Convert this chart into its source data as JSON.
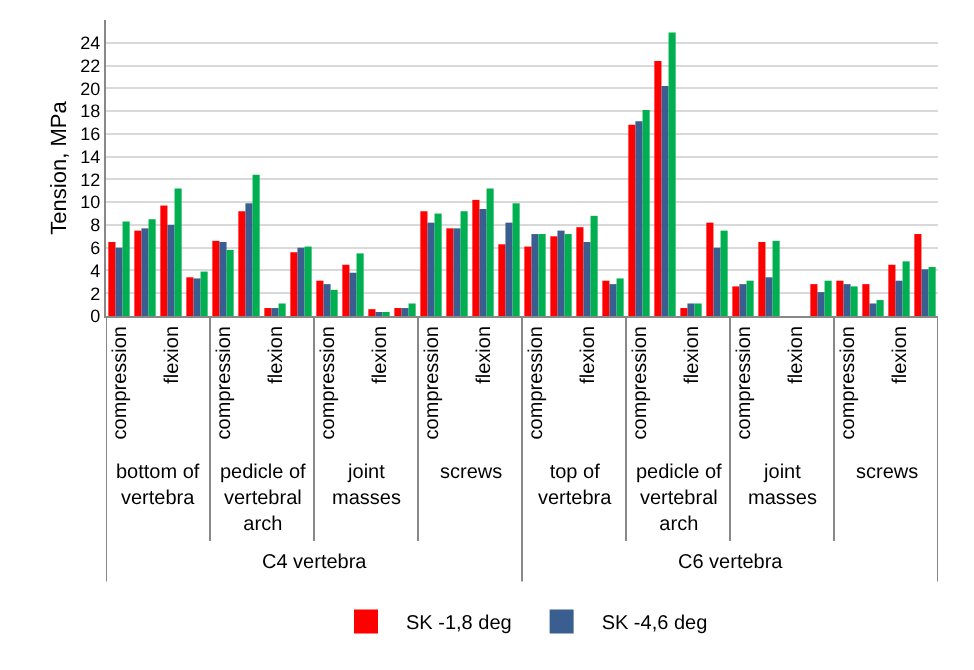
{
  "chart_data": {
    "type": "bar",
    "ylabel": "Tension, MPa",
    "categories": [
      "compression",
      null,
      "flexion",
      null,
      "compression",
      null,
      "flexion",
      null,
      "compression",
      null,
      "flexion",
      null,
      "compression",
      null,
      "flexion",
      null,
      "compression",
      null,
      "flexion",
      null,
      "compression",
      null,
      "flexion",
      null,
      "compression",
      null,
      "flexion",
      null,
      "compression",
      null,
      "flexion",
      null
    ],
    "series": [
      {
        "name": "SK -1,8 deg",
        "color": "#ff0000",
        "values": [
          6.5,
          7.5,
          9.7,
          3.4,
          6.6,
          9.2,
          0.7,
          5.6,
          3.1,
          4.5,
          0.6,
          0.7,
          9.2,
          7.7,
          10.2,
          6.3,
          6.1,
          7.0,
          7.8,
          3.1,
          16.8,
          22.4,
          0.7,
          8.2,
          2.6,
          6.5,
          null,
          2.8,
          3.1,
          2.8,
          4.5,
          7.2
        ]
      },
      {
        "name": "SK -4,6 deg",
        "color": "#3b5e91",
        "values": [
          6.0,
          7.7,
          8.0,
          3.3,
          6.5,
          9.9,
          0.7,
          6.0,
          2.8,
          3.8,
          0.2,
          0.7,
          8.2,
          7.7,
          9.4,
          8.2,
          7.2,
          7.5,
          6.5,
          2.8,
          17.1,
          20.2,
          1.1,
          6.0,
          2.8,
          3.4,
          null,
          2.1,
          2.8,
          1.1,
          3.1,
          4.1
        ]
      },
      {
        "color": "#00b050",
        "values": [
          8.3,
          8.5,
          11.2,
          3.9,
          5.8,
          12.4,
          1.1,
          6.1,
          2.3,
          5.5,
          0.2,
          1.1,
          9.0,
          9.2,
          11.2,
          9.9,
          7.2,
          7.2,
          8.8,
          3.3,
          18.1,
          24.9,
          1.1,
          7.5,
          3.1,
          6.6,
          null,
          3.1,
          2.6,
          1.4,
          4.8,
          4.3
        ]
      }
    ],
    "annotations": [
      "bottom of vertebra",
      "pedicle of vertebral arch",
      "joint masses",
      "screws",
      "top of vertebra",
      "pedicle of vertebral arch",
      "joint masses",
      "screws",
      "C4 vertebra",
      "C6 vertebra"
    ],
    "ylim": [
      0,
      26
    ],
    "yticks": [
      0,
      2,
      4,
      6,
      8,
      10,
      12,
      14,
      16,
      18,
      20,
      22,
      24
    ],
    "grid": "y",
    "legend": "bottom"
  }
}
